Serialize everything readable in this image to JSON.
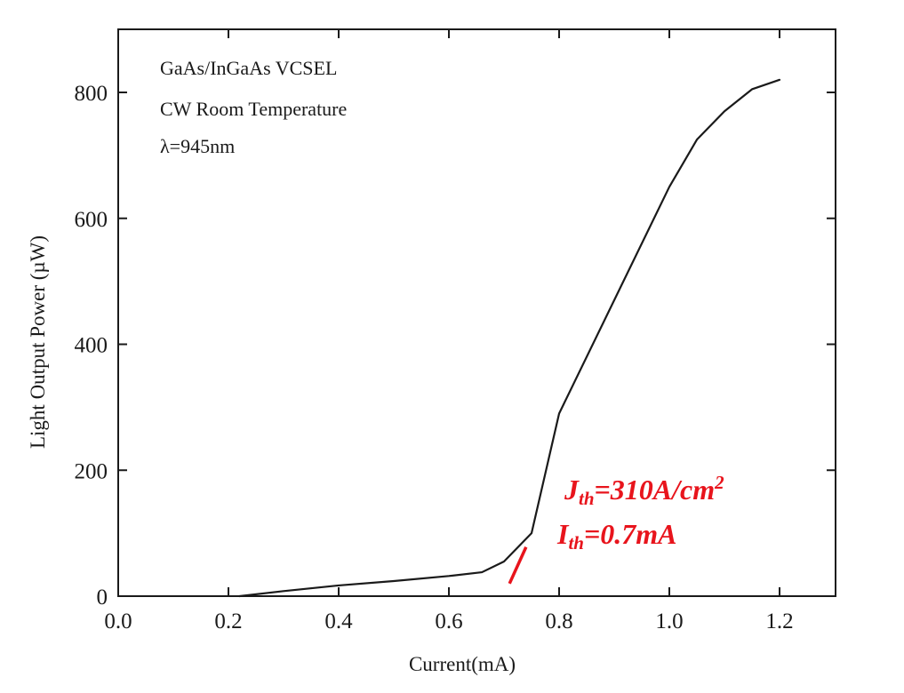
{
  "chart_data": {
    "type": "line",
    "xlabel": "Current(mA)",
    "ylabel": "Light Output Power (µW)",
    "xlim": [
      0.0,
      1.3
    ],
    "ylim": [
      0,
      800
    ],
    "x_ticks": [
      "0.0",
      "0.2",
      "0.4",
      "0.6",
      "0.8",
      "1.0",
      "1.2"
    ],
    "y_ticks": [
      "0",
      "200",
      "400",
      "600",
      "800"
    ],
    "grid": false,
    "legend": "none",
    "notes": [
      "GaAs/InGaAs VCSEL",
      "CW  Room Temperature",
      "λ=945nm"
    ],
    "series": [
      {
        "color": "#1a1a1a",
        "x": [
          0.22,
          0.3,
          0.4,
          0.5,
          0.6,
          0.66,
          0.7,
          0.75,
          0.8,
          0.9,
          1.0,
          1.05,
          1.1,
          1.15,
          1.2
        ],
        "y": [
          0,
          8,
          17,
          24,
          32,
          38,
          55,
          100,
          290,
          470,
          650,
          725,
          770,
          805,
          820
        ]
      }
    ],
    "annotations": {
      "color": "#e8141c",
      "jth": {
        "main": "J",
        "sub": "th",
        "value": "=310A/cm",
        "sup": "2"
      },
      "ith": {
        "main": "I",
        "sub": "th",
        "value": "=0.7mA"
      },
      "threshold_marker": {
        "x": [
          0.71,
          0.74
        ],
        "y": [
          20,
          78
        ]
      }
    }
  }
}
